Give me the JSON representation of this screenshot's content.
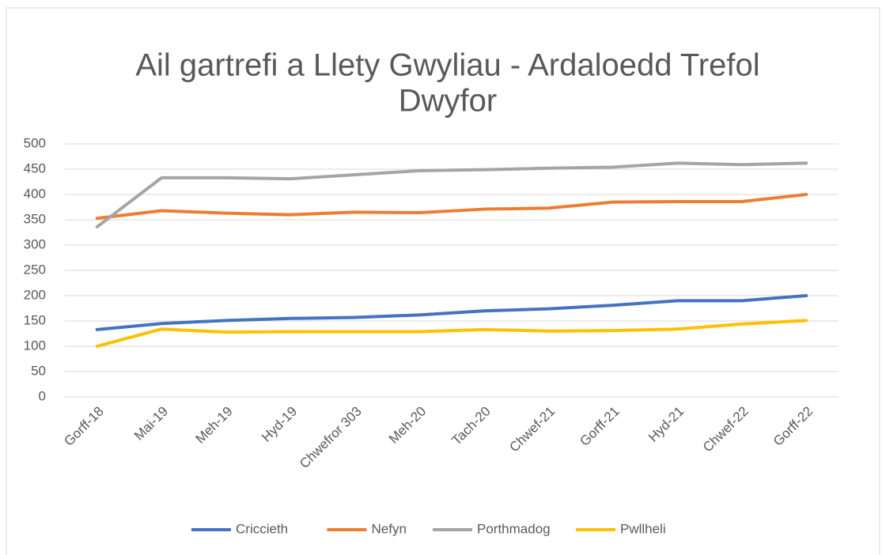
{
  "chart_data": {
    "type": "line",
    "title": [
      "Ail gartrefi a Llety Gwyliau - Ardaloedd Trefol",
      "Dwyfor"
    ],
    "categories": [
      "Gorff-18",
      "Mai-19",
      "Meh-19",
      "Hyd-19",
      "Chwefror 303",
      "Meh-20",
      "Tach-20",
      "Chwef-21",
      "Gorff-21",
      "Hyd-21",
      "Chwef-22",
      "Gorff-22"
    ],
    "series": [
      {
        "name": "Criccieth",
        "color": "#4472c4",
        "values": [
          133,
          145,
          151,
          155,
          157,
          162,
          170,
          174,
          181,
          190,
          190,
          200
        ]
      },
      {
        "name": "Nefyn",
        "color": "#ed7d31",
        "values": [
          353,
          368,
          363,
          360,
          365,
          364,
          371,
          373,
          385,
          386,
          386,
          400
        ]
      },
      {
        "name": "Porthmadog",
        "color": "#a5a5a5",
        "values": [
          336,
          433,
          433,
          431,
          439,
          447,
          449,
          452,
          454,
          462,
          459,
          462
        ]
      },
      {
        "name": "Pwllheli",
        "color": "#ffc000",
        "values": [
          100,
          134,
          128,
          129,
          129,
          129,
          133,
          130,
          131,
          134,
          144,
          151
        ]
      }
    ],
    "ylim": [
      0,
      500
    ],
    "yticks": [
      0,
      50,
      100,
      150,
      200,
      250,
      300,
      350,
      400,
      450,
      500
    ],
    "grid": true,
    "legend": "bottom"
  }
}
